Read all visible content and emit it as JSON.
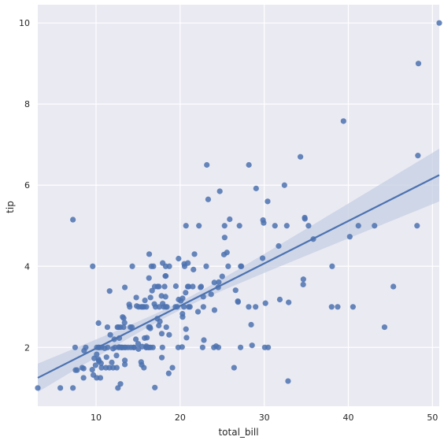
{
  "chart_data": {
    "type": "scatter",
    "xlabel": "total_bill",
    "ylabel": "tip",
    "xlim": [
      3.07,
      50.81
    ],
    "ylim": [
      0.55,
      10.45
    ],
    "xticks": [
      10,
      20,
      30,
      40,
      50
    ],
    "yticks": [
      2,
      4,
      6,
      8,
      10
    ],
    "grid": true,
    "colors": {
      "background": "#eaeaf2",
      "grid": "#ffffff",
      "points": "#4c72b0",
      "regression_line": "#4c72b0",
      "confidence_band": "#c6cfe3"
    },
    "points": [
      [
        3.07,
        1.0
      ],
      [
        5.75,
        1.0
      ],
      [
        7.25,
        1.0
      ],
      [
        7.25,
        5.15
      ],
      [
        7.51,
        2.0
      ],
      [
        7.56,
        1.44
      ],
      [
        7.74,
        1.44
      ],
      [
        8.35,
        1.5
      ],
      [
        8.51,
        1.25
      ],
      [
        8.52,
        1.48
      ],
      [
        8.58,
        1.92
      ],
      [
        8.77,
        2.0
      ],
      [
        9.55,
        1.45
      ],
      [
        9.6,
        4.0
      ],
      [
        9.68,
        1.32
      ],
      [
        9.78,
        1.73
      ],
      [
        9.94,
        1.56
      ],
      [
        10.07,
        1.83
      ],
      [
        10.07,
        1.25
      ],
      [
        10.09,
        2.0
      ],
      [
        10.27,
        1.71
      ],
      [
        10.29,
        2.6
      ],
      [
        10.33,
        1.67
      ],
      [
        10.33,
        2.0
      ],
      [
        10.34,
        1.66
      ],
      [
        10.34,
        2.0
      ],
      [
        10.51,
        1.25
      ],
      [
        10.59,
        1.61
      ],
      [
        10.63,
        2.0
      ],
      [
        10.65,
        1.5
      ],
      [
        11.02,
        1.98
      ],
      [
        11.17,
        1.5
      ],
      [
        11.24,
        1.76
      ],
      [
        11.35,
        2.5
      ],
      [
        11.38,
        2.0
      ],
      [
        11.59,
        1.5
      ],
      [
        11.61,
        3.39
      ],
      [
        11.69,
        2.31
      ],
      [
        11.87,
        1.63
      ],
      [
        12.02,
        1.97
      ],
      [
        12.03,
        1.5
      ],
      [
        12.16,
        2.2
      ],
      [
        12.26,
        2.0
      ],
      [
        12.43,
        1.8
      ],
      [
        12.46,
        1.5
      ],
      [
        12.54,
        2.5
      ],
      [
        12.6,
        1.0
      ],
      [
        12.66,
        2.5
      ],
      [
        12.69,
        2.0
      ],
      [
        12.74,
        2.01
      ],
      [
        12.76,
        2.23
      ],
      [
        12.9,
        1.1
      ],
      [
        12.9,
        2.5
      ],
      [
        13.0,
        2.0
      ],
      [
        13.03,
        2.0
      ],
      [
        13.13,
        2.0
      ],
      [
        13.16,
        2.75
      ],
      [
        13.27,
        2.5
      ],
      [
        13.28,
        2.72
      ],
      [
        13.37,
        2.0
      ],
      [
        13.39,
        2.61
      ],
      [
        13.42,
        3.48
      ],
      [
        13.42,
        1.58
      ],
      [
        13.42,
        1.68
      ],
      [
        13.51,
        2.0
      ],
      [
        13.81,
        2.0
      ],
      [
        13.94,
        3.06
      ],
      [
        14.0,
        3.0
      ],
      [
        14.07,
        2.5
      ],
      [
        14.15,
        2.0
      ],
      [
        14.26,
        2.5
      ],
      [
        14.31,
        4.0
      ],
      [
        14.48,
        2.0
      ],
      [
        14.52,
        2.0
      ],
      [
        14.73,
        2.2
      ],
      [
        14.78,
        3.23
      ],
      [
        14.83,
        3.02
      ],
      [
        15.01,
        2.09
      ],
      [
        15.04,
        1.96
      ],
      [
        15.06,
        3.0
      ],
      [
        15.36,
        1.64
      ],
      [
        15.38,
        3.0
      ],
      [
        15.42,
        1.57
      ],
      [
        15.48,
        2.02
      ],
      [
        15.53,
        3.0
      ],
      [
        15.69,
        3.0
      ],
      [
        15.69,
        1.5
      ],
      [
        15.77,
        2.23
      ],
      [
        15.81,
        3.16
      ],
      [
        15.95,
        2.0
      ],
      [
        15.98,
        2.03
      ],
      [
        15.98,
        3.0
      ],
      [
        16.0,
        2.0
      ],
      [
        16.04,
        2.24
      ],
      [
        16.21,
        2.0
      ],
      [
        16.27,
        2.5
      ],
      [
        16.29,
        3.71
      ],
      [
        16.31,
        2.0
      ],
      [
        16.32,
        4.3
      ],
      [
        16.4,
        2.5
      ],
      [
        16.45,
        2.47
      ],
      [
        16.47,
        3.23
      ],
      [
        16.49,
        2.0
      ],
      [
        16.58,
        4.0
      ],
      [
        16.66,
        3.4
      ],
      [
        16.76,
        2.0
      ],
      [
        16.82,
        4.0
      ],
      [
        16.93,
        3.07
      ],
      [
        16.97,
        3.5
      ],
      [
        16.99,
        1.01
      ],
      [
        17.07,
        3.0
      ],
      [
        17.29,
        2.71
      ],
      [
        17.31,
        3.5
      ],
      [
        17.46,
        2.54
      ],
      [
        17.47,
        3.5
      ],
      [
        17.51,
        3.0
      ],
      [
        17.59,
        2.64
      ],
      [
        17.78,
        3.27
      ],
      [
        17.81,
        2.34
      ],
      [
        17.82,
        1.75
      ],
      [
        17.89,
        2.0
      ],
      [
        17.92,
        4.08
      ],
      [
        17.92,
        3.08
      ],
      [
        18.04,
        3.0
      ],
      [
        18.15,
        3.5
      ],
      [
        18.24,
        3.76
      ],
      [
        18.26,
        3.25
      ],
      [
        18.28,
        4.0
      ],
      [
        18.29,
        3.76
      ],
      [
        18.29,
        3.0
      ],
      [
        18.35,
        2.5
      ],
      [
        18.43,
        3.0
      ],
      [
        18.64,
        1.36
      ],
      [
        18.69,
        2.31
      ],
      [
        18.71,
        4.0
      ],
      [
        19.08,
        1.5
      ],
      [
        19.44,
        3.0
      ],
      [
        19.49,
        3.51
      ],
      [
        19.65,
        3.0
      ],
      [
        19.77,
        2.0
      ],
      [
        19.81,
        4.19
      ],
      [
        19.82,
        3.18
      ],
      [
        20.08,
        3.15
      ],
      [
        20.23,
        2.01
      ],
      [
        20.27,
        2.83
      ],
      [
        20.29,
        3.21
      ],
      [
        20.29,
        2.75
      ],
      [
        20.45,
        3.0
      ],
      [
        20.49,
        4.06
      ],
      [
        20.53,
        4.0
      ],
      [
        20.65,
        3.35
      ],
      [
        20.69,
        2.45
      ],
      [
        20.69,
        5.0
      ],
      [
        20.76,
        2.24
      ],
      [
        20.9,
        3.5
      ],
      [
        20.92,
        4.08
      ],
      [
        21.01,
        3.0
      ],
      [
        21.01,
        3.5
      ],
      [
        21.16,
        3.0
      ],
      [
        21.5,
        3.5
      ],
      [
        21.58,
        3.92
      ],
      [
        21.7,
        4.3
      ],
      [
        22.12,
        2.88
      ],
      [
        22.23,
        5.0
      ],
      [
        22.42,
        3.48
      ],
      [
        22.49,
        3.5
      ],
      [
        22.67,
        2.0
      ],
      [
        22.75,
        3.25
      ],
      [
        22.76,
        3.0
      ],
      [
        22.82,
        2.18
      ],
      [
        23.1,
        4.0
      ],
      [
        23.17,
        6.5
      ],
      [
        23.33,
        5.65
      ],
      [
        23.68,
        3.31
      ],
      [
        24.01,
        2.0
      ],
      [
        24.06,
        3.6
      ],
      [
        24.08,
        2.92
      ],
      [
        24.27,
        2.03
      ],
      [
        24.52,
        3.48
      ],
      [
        24.55,
        2.0
      ],
      [
        24.59,
        3.61
      ],
      [
        24.71,
        5.85
      ],
      [
        25.0,
        3.75
      ],
      [
        25.21,
        4.29
      ],
      [
        25.28,
        5.0
      ],
      [
        25.29,
        4.71
      ],
      [
        25.56,
        4.34
      ],
      [
        25.71,
        4.0
      ],
      [
        25.89,
        5.16
      ],
      [
        26.41,
        1.5
      ],
      [
        26.59,
        3.41
      ],
      [
        26.86,
        3.14
      ],
      [
        26.88,
        3.12
      ],
      [
        27.05,
        5.0
      ],
      [
        27.18,
        2.0
      ],
      [
        27.2,
        4.0
      ],
      [
        27.28,
        4.0
      ],
      [
        28.15,
        3.0
      ],
      [
        28.17,
        6.5
      ],
      [
        28.44,
        2.56
      ],
      [
        28.55,
        2.05
      ],
      [
        28.97,
        3.0
      ],
      [
        29.03,
        5.92
      ],
      [
        29.8,
        4.2
      ],
      [
        29.85,
        5.14
      ],
      [
        29.93,
        5.07
      ],
      [
        30.06,
        2.0
      ],
      [
        30.14,
        3.09
      ],
      [
        30.4,
        5.6
      ],
      [
        30.46,
        2.0
      ],
      [
        31.27,
        5.0
      ],
      [
        31.71,
        4.5
      ],
      [
        31.85,
        3.18
      ],
      [
        32.4,
        6.0
      ],
      [
        32.68,
        5.0
      ],
      [
        32.83,
        1.17
      ],
      [
        32.9,
        3.11
      ],
      [
        34.3,
        6.7
      ],
      [
        34.63,
        3.55
      ],
      [
        34.65,
        3.68
      ],
      [
        34.81,
        5.2
      ],
      [
        34.83,
        5.17
      ],
      [
        35.26,
        5.0
      ],
      [
        35.83,
        4.67
      ],
      [
        38.01,
        3.0
      ],
      [
        38.07,
        4.0
      ],
      [
        38.73,
        3.0
      ],
      [
        39.42,
        7.58
      ],
      [
        40.17,
        4.73
      ],
      [
        40.55,
        3.0
      ],
      [
        41.19,
        5.0
      ],
      [
        43.11,
        5.0
      ],
      [
        44.3,
        2.5
      ],
      [
        45.35,
        3.5
      ],
      [
        48.17,
        5.0
      ],
      [
        48.27,
        6.73
      ],
      [
        48.33,
        9.0
      ],
      [
        50.81,
        10.0
      ]
    ],
    "regression": {
      "x_range": [
        3.07,
        50.81
      ],
      "y_at_range": [
        1.25,
        6.25
      ],
      "ci_lower": [
        0.9,
        5.75
      ],
      "ci_upper": [
        1.6,
        7.05
      ],
      "ci_mid_x": 19.8,
      "ci_mid_halfwidth": 0.1
    }
  }
}
